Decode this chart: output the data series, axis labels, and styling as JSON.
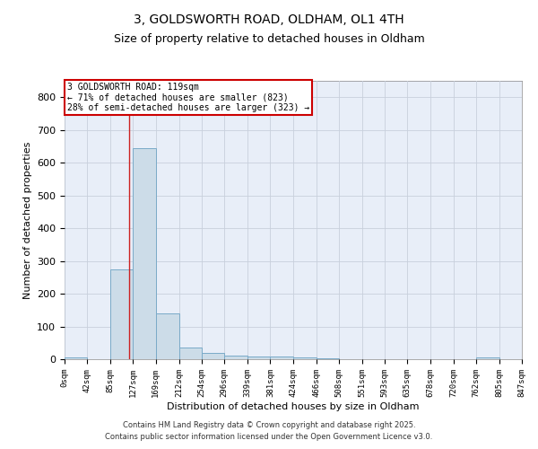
{
  "title1": "3, GOLDSWORTH ROAD, OLDHAM, OL1 4TH",
  "title2": "Size of property relative to detached houses in Oldham",
  "xlabel": "Distribution of detached houses by size in Oldham",
  "ylabel": "Number of detached properties",
  "bar_color": "#ccdce8",
  "bar_edge_color": "#7aaac8",
  "grid_color": "#c8d0dc",
  "background_color": "#e8eef8",
  "red_line_x": 119,
  "annotation_text": "3 GOLDSWORTH ROAD: 119sqm\n← 71% of detached houses are smaller (823)\n28% of semi-detached houses are larger (323) →",
  "bin_edges": [
    0,
    42,
    85,
    127,
    169,
    212,
    254,
    296,
    339,
    381,
    424,
    466,
    508,
    551,
    593,
    635,
    678,
    720,
    762,
    805,
    847
  ],
  "bin_values": [
    5,
    0,
    275,
    645,
    140,
    35,
    18,
    10,
    8,
    7,
    5,
    3,
    0,
    0,
    0,
    0,
    0,
    0,
    5,
    0
  ],
  "ylim": [
    0,
    850
  ],
  "yticks": [
    0,
    100,
    200,
    300,
    400,
    500,
    600,
    700,
    800
  ],
  "footnote1": "Contains HM Land Registry data © Crown copyright and database right 2025.",
  "footnote2": "Contains public sector information licensed under the Open Government Licence v3.0."
}
